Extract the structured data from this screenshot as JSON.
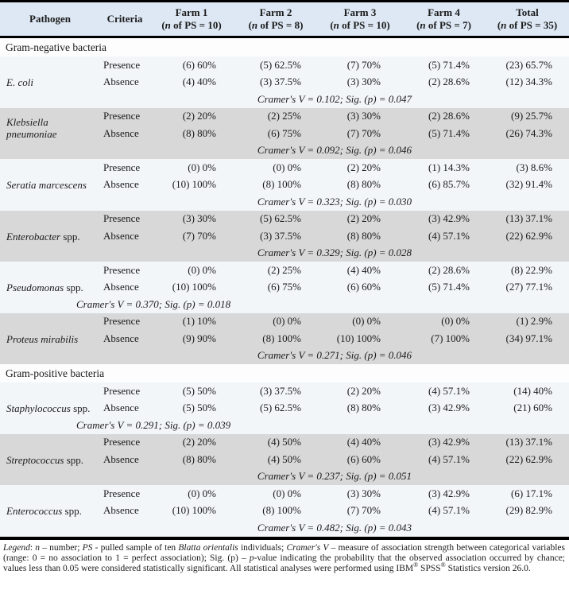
{
  "colors": {
    "header_bg": "#dde8f4",
    "row_gray": "#d8d8d8",
    "row_light": "#f3f6f9",
    "section_bg": "#fdfdfe",
    "rule": "#000000"
  },
  "table": {
    "criteria_labels": {
      "presence": "Presence",
      "absence": "Absence"
    },
    "header": {
      "pathogen": "Pathogen",
      "criteria": "Criteria",
      "farm_cols": [
        {
          "line1": "Farm 1",
          "line2_segs": [
            {
              "t": "("
            },
            {
              "t": "n",
              "i": true
            },
            {
              "t": " of PS = 10)"
            }
          ]
        },
        {
          "line1": "Farm 2",
          "line2_segs": [
            {
              "t": "("
            },
            {
              "t": "n",
              "i": true
            },
            {
              "t": " of PS = 8)"
            }
          ]
        },
        {
          "line1": "Farm 3",
          "line2_segs": [
            {
              "t": "("
            },
            {
              "t": "n",
              "i": true
            },
            {
              "t": " of PS = 10)"
            }
          ]
        },
        {
          "line1": "Farm 4",
          "line2_segs": [
            {
              "t": "("
            },
            {
              "t": "n",
              "i": true
            },
            {
              "t": " of PS = 7)"
            }
          ]
        },
        {
          "line1": "Total",
          "line2_segs": [
            {
              "t": "("
            },
            {
              "t": "n",
              "i": true
            },
            {
              "t": " of PS = 35)"
            }
          ]
        }
      ]
    },
    "sections": [
      {
        "label": "Gram-negative bacteria",
        "groups": [
          {
            "name_segs": [
              {
                "t": "E. coli",
                "i": true
              }
            ],
            "shade": "light",
            "cramer_align": "center",
            "presence": [
              "(6) 60%",
              "(5) 62.5%",
              "(7) 70%",
              "(5) 71.4%",
              "(23) 65.7%"
            ],
            "absence": [
              "(4) 40%",
              "(3) 37.5%",
              "(3) 30%",
              "(2) 28.6%",
              "(12) 34.3%"
            ],
            "cramer": "Cramer's V = 0.102; Sig. (p) = 0.047"
          },
          {
            "name_segs": [
              {
                "t": "Klebsiella pneumoniae",
                "i": true
              }
            ],
            "shade": "gray",
            "cramer_align": "center",
            "presence": [
              "(2) 20%",
              "(2) 25%",
              "(3) 30%",
              "(2) 28.6%",
              "(9) 25.7%"
            ],
            "absence": [
              "(8) 80%",
              "(6) 75%",
              "(7) 70%",
              "(5) 71.4%",
              "(26) 74.3%"
            ],
            "cramer": "Cramer's V = 0.092; Sig. (p) = 0.046"
          },
          {
            "name_segs": [
              {
                "t": "Seratia marcescens",
                "i": true
              }
            ],
            "shade": "light",
            "cramer_align": "center",
            "presence": [
              "(0) 0%",
              "(0) 0%",
              "(2) 20%",
              "(1) 14.3%",
              "(3) 8.6%"
            ],
            "absence": [
              "(10) 100%",
              "(8) 100%",
              "(8) 80%",
              "(6) 85.7%",
              "(32) 91.4%"
            ],
            "cramer": "Cramer's V = 0.323; Sig. (p) = 0.030"
          },
          {
            "name_segs": [
              {
                "t": "Enterobacter",
                "i": true
              },
              {
                "t": " spp."
              }
            ],
            "shade": "gray",
            "cramer_align": "center",
            "presence": [
              "(3) 30%",
              "(5) 62.5%",
              "(2) 20%",
              "(3) 42.9%",
              "(13) 37.1%"
            ],
            "absence": [
              "(7) 70%",
              "(3) 37.5%",
              "(8) 80%",
              "(4) 57.1%",
              "(22) 62.9%"
            ],
            "cramer": "Cramer's V = 0.329; Sig. (p) = 0.028"
          },
          {
            "name_segs": [
              {
                "t": "Pseudomonas",
                "i": true
              },
              {
                "t": " spp."
              }
            ],
            "shade": "light",
            "cramer_align": "left",
            "presence": [
              "(0) 0%",
              "(2) 25%",
              "(4) 40%",
              "(2) 28.6%",
              "(8) 22.9%"
            ],
            "absence": [
              "(10) 100%",
              "(6) 75%",
              "(6) 60%",
              "(5) 71.4%",
              "(27) 77.1%"
            ],
            "cramer": "Cramer's V = 0.370; Sig. (p) = 0.018"
          },
          {
            "name_segs": [
              {
                "t": "Proteus mirabilis",
                "i": true
              }
            ],
            "shade": "gray",
            "cramer_align": "center",
            "presence": [
              "(1) 10%",
              "(0) 0%",
              "(0) 0%",
              "(0) 0%",
              "(1) 2.9%"
            ],
            "absence": [
              "(9) 90%",
              "(8) 100%",
              "(10) 100%",
              "(7) 100%",
              "(34) 97.1%"
            ],
            "cramer": "Cramer's V = 0.271; Sig. (p) = 0.046"
          }
        ]
      },
      {
        "label": "Gram-positive bacteria",
        "groups": [
          {
            "name_segs": [
              {
                "t": "Staphylococcus",
                "i": true
              },
              {
                "t": " spp."
              }
            ],
            "shade": "light",
            "cramer_align": "left",
            "presence": [
              "(5) 50%",
              "(3) 37.5%",
              "(2) 20%",
              "(4) 57.1%",
              "(14) 40%"
            ],
            "absence": [
              "(5) 50%",
              "(5) 62.5%",
              "(8) 80%",
              "(3) 42.9%",
              "(21) 60%"
            ],
            "cramer": "Cramer's V = 0.291; Sig. (p) = 0.039"
          },
          {
            "name_segs": [
              {
                "t": "Streptococcus",
                "i": true
              },
              {
                "t": " spp."
              }
            ],
            "shade": "gray",
            "cramer_align": "center",
            "presence": [
              "(2) 20%",
              "(4) 50%",
              "(4) 40%",
              "(3) 42.9%",
              "(13) 37.1%"
            ],
            "absence": [
              "(8) 80%",
              "(4) 50%",
              "(6) 60%",
              "(4) 57.1%",
              "(22) 62.9%"
            ],
            "cramer": "Cramer's V = 0.237; Sig. (p) = 0.051"
          },
          {
            "name_segs": [
              {
                "t": "Enterococcus",
                "i": true
              },
              {
                "t": " spp."
              }
            ],
            "shade": "light",
            "cramer_align": "center",
            "presence": [
              "(0) 0%",
              "(0) 0%",
              "(3) 30%",
              "(3) 42.9%",
              "(6) 17.1%"
            ],
            "absence": [
              "(10) 100%",
              "(8) 100%",
              "(7) 70%",
              "(4) 57.1%",
              "(29) 82.9%"
            ],
            "cramer": "Cramer's V = 0.482; Sig. (p) = 0.043"
          }
        ]
      }
    ]
  },
  "legend": {
    "segs": [
      {
        "t": "Legend",
        "i": true
      },
      {
        "t": ": "
      },
      {
        "t": "n",
        "i": true
      },
      {
        "t": " – number; "
      },
      {
        "t": "PS",
        "i": true
      },
      {
        "t": " -  pulled sample of  ten "
      },
      {
        "t": "Blatta orientalis",
        "i": true
      },
      {
        "t": " individuals; "
      },
      {
        "t": "Cramer's V",
        "i": true
      },
      {
        "t": " – measure of association strength between categorical variables (range: 0 = no association to 1 = perfect association); Sig. (p) – "
      },
      {
        "t": "p",
        "i": true
      },
      {
        "t": "-value indicating the probability that the observed association occurred by chance; values less than 0.05 were considered statistically significant. All statistical analyses were performed using IBM"
      },
      {
        "t": "®",
        "sup": true
      },
      {
        "t": " SPSS"
      },
      {
        "t": "®",
        "sup": true
      },
      {
        "t": " Statistics version 26.0."
      }
    ]
  }
}
